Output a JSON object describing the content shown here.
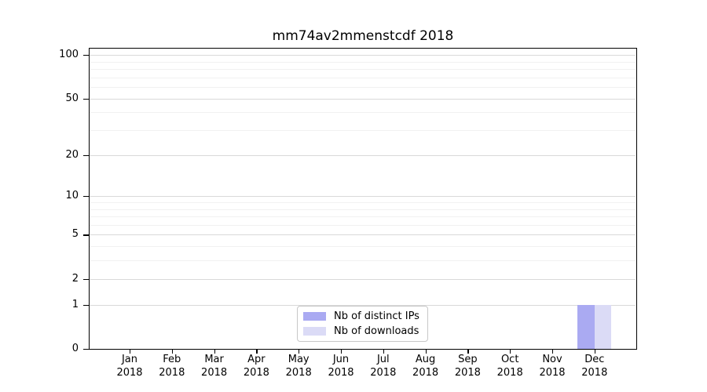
{
  "chart_data": {
    "type": "bar",
    "title": "mm74av2mmenstcdf 2018",
    "categories": [
      "Jan 2018",
      "Feb 2018",
      "Mar 2018",
      "Apr 2018",
      "May 2018",
      "Jun 2018",
      "Jul 2018",
      "Aug 2018",
      "Sep 2018",
      "Oct 2018",
      "Nov 2018",
      "Dec 2018"
    ],
    "series": [
      {
        "name": "Nb of distinct IPs",
        "color": "#aaaaf2",
        "values": [
          0,
          0,
          0,
          0,
          0,
          0,
          0,
          0,
          0,
          0,
          0,
          1
        ]
      },
      {
        "name": "Nb of downloads",
        "color": "#dbdbf6",
        "values": [
          0,
          0,
          0,
          0,
          0,
          0,
          0,
          0,
          0,
          0,
          0,
          1
        ]
      }
    ],
    "xlabel": "",
    "ylabel": "",
    "yaxis": {
      "scale": "log10(value+1)",
      "ticks": [
        0,
        1,
        2,
        5,
        10,
        20,
        50,
        100
      ],
      "minor_gridlines": [
        3,
        4,
        6,
        7,
        8,
        9,
        30,
        40,
        60,
        70,
        80,
        90
      ],
      "ylim": [
        0,
        112
      ]
    },
    "grid": "horizontal",
    "legend_position": "bottom-center",
    "colors": {
      "major_grid": "#d9d9d9",
      "minor_grid": "#f1f1f1",
      "spine": "#000000",
      "text": "#000000",
      "legend_border": "#c8c8c8"
    }
  }
}
